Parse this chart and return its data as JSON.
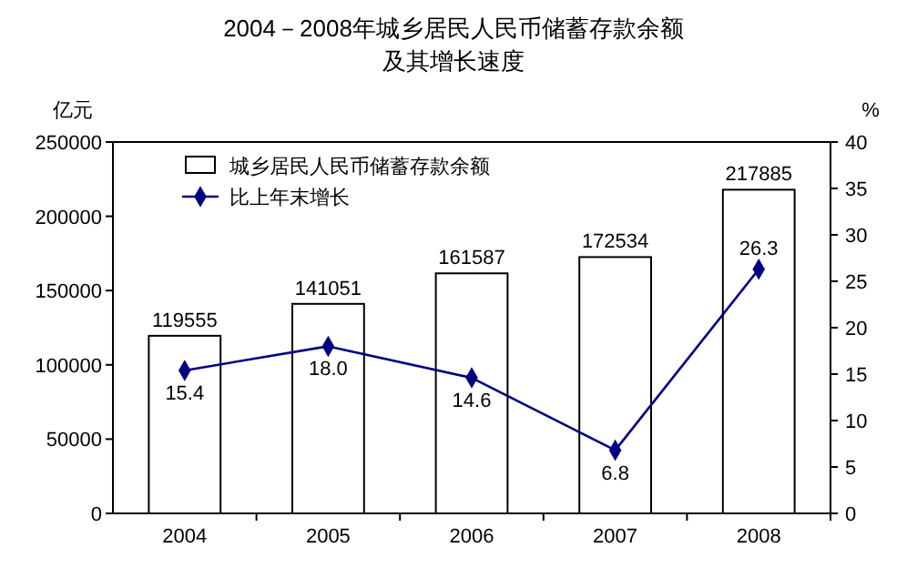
{
  "chart_data": {
    "type": "bar",
    "title": "2004－2008年城乡居民人民币储蓄存款余额",
    "subtitle": "及其增长速度",
    "ylabel": "亿元",
    "y2label": "%",
    "categories": [
      "2004",
      "2005",
      "2006",
      "2007",
      "2008"
    ],
    "series": [
      {
        "name": "城乡居民人民币储蓄存款余额",
        "color": "#ffffff",
        "values": [
          119555,
          141051,
          161587,
          172534,
          217885
        ]
      },
      {
        "name": "比上年末增长",
        "type": "line",
        "axis": "y2",
        "color": "#000080",
        "values": [
          15.4,
          18.0,
          14.6,
          6.8,
          26.3
        ],
        "value_labels": [
          "15.4",
          "18.0",
          "14.6",
          "6.8",
          "26.3"
        ]
      }
    ],
    "data_labels": true,
    "ylim": [
      0,
      250000
    ],
    "yticks": [
      0,
      50000,
      100000,
      150000,
      200000,
      250000
    ],
    "y2lim": [
      0,
      40
    ],
    "y2ticks": [
      0,
      5,
      10,
      15,
      20,
      25,
      30,
      35,
      40
    ],
    "legend": "top left",
    "marker": "diamond",
    "line_style": "solid",
    "grid": false
  }
}
